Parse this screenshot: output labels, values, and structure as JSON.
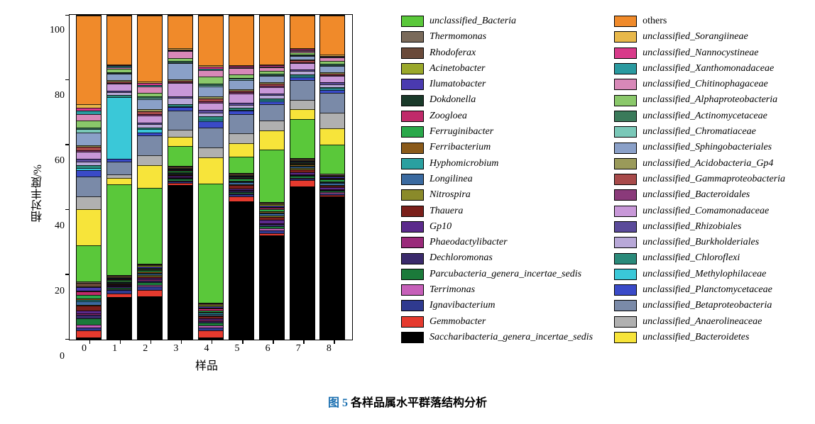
{
  "caption": {
    "label": "图 5",
    "text": " 各样品属水平群落结构分析"
  },
  "axes": {
    "ylabel": "相对丰度/%",
    "xlabel": "样品",
    "ylim": [
      0,
      100
    ],
    "yticks": [
      0,
      20,
      40,
      60,
      80,
      100
    ],
    "categories": [
      "0",
      "1",
      "2",
      "3",
      "4",
      "5",
      "6",
      "7",
      "8"
    ],
    "label_fontsize": 16,
    "tick_fontsize": 14,
    "border_color": "#000000",
    "background": "#ffffff"
  },
  "taxa": [
    {
      "key": "saccharibacteria",
      "label": "Saccharibacteria_genera_incertae_sedis",
      "color": "#000000"
    },
    {
      "key": "gemmobacter",
      "label": "Gemmobacter",
      "color": "#e53a2e"
    },
    {
      "key": "ignavibacterium",
      "label": "Ignavibacterium",
      "color": "#2f3a8f"
    },
    {
      "key": "terrimonas",
      "label": "Terrimonas",
      "color": "#c65fb9"
    },
    {
      "key": "parcubacteria",
      "label": "Parcubacteria_genera_incertae_sedis",
      "color": "#1b7a3a"
    },
    {
      "key": "dechloromonas",
      "label": "Dechloromonas",
      "color": "#3a2a6b"
    },
    {
      "key": "phaeodactylibacter",
      "label": "Phaeodactylibacter",
      "color": "#9a2a7a"
    },
    {
      "key": "gp10",
      "label": "Gp10",
      "color": "#5b2a8c"
    },
    {
      "key": "thauera",
      "label": "Thauera",
      "color": "#7a1f1a"
    },
    {
      "key": "nitrospira",
      "label": "Nitrospira",
      "color": "#8a8a2a"
    },
    {
      "key": "longilinea",
      "label": "Longilinea",
      "color": "#3a6aa0"
    },
    {
      "key": "hyphomicrobium",
      "label": "Hyphomicrobium",
      "color": "#2aa0a0"
    },
    {
      "key": "ferribacterium",
      "label": "Ferribacterium",
      "color": "#8a5a1a"
    },
    {
      "key": "ferruginibacter",
      "label": "Ferruginibacter",
      "color": "#2aa84a"
    },
    {
      "key": "zoogloea",
      "label": "Zoogloea",
      "color": "#c02a6a"
    },
    {
      "key": "dokdonella",
      "label": "Dokdonella",
      "color": "#1a3a2a"
    },
    {
      "key": "ilumatobacter",
      "label": "Ilumatobacter",
      "color": "#4a3ab0"
    },
    {
      "key": "acinetobacter",
      "label": "Acinetobacter",
      "color": "#9aa82a"
    },
    {
      "key": "rhodoferax",
      "label": "Rhodoferax",
      "color": "#6a4a3a"
    },
    {
      "key": "thermomonas",
      "label": "Thermomonas",
      "color": "#7a6a5a"
    },
    {
      "key": "unclassified_bacteria",
      "label": "unclassified_Bacteria",
      "color": "#5ac83a"
    },
    {
      "key": "u_bacteroidetes",
      "label": "unclassified_Bacteroidetes",
      "color": "#f7e43a"
    },
    {
      "key": "u_anaerolineaceae",
      "label": "unclassified_Anaerolineaceae",
      "color": "#b0b0b0"
    },
    {
      "key": "u_betaproteobacteria",
      "label": "unclassified_Betaproteobacteria",
      "color": "#7a8aa8"
    },
    {
      "key": "u_planctomycetaceae",
      "label": "unclassified_Planctomycetaceae",
      "color": "#3a4ac8"
    },
    {
      "key": "u_methylophilaceae",
      "label": "unclassified_Methylophilaceae",
      "color": "#3ac8d8"
    },
    {
      "key": "u_chloroflexi",
      "label": "unclassified_Chloroflexi",
      "color": "#2a8a7a"
    },
    {
      "key": "u_burkholderiales",
      "label": "unclassified_Burkholderiales",
      "color": "#b8a8d8"
    },
    {
      "key": "u_rhizobiales",
      "label": "unclassified_Rhizobiales",
      "color": "#5a4a9a"
    },
    {
      "key": "u_comamonadaceae",
      "label": "unclassified_Comamonadaceae",
      "color": "#c898d8"
    },
    {
      "key": "u_bacteroidales",
      "label": "unclassified_Bacteroidales",
      "color": "#8a3a7a"
    },
    {
      "key": "u_gammaproteobacteria",
      "label": "unclassified_Gammaproteobacteria",
      "color": "#a84a4a"
    },
    {
      "key": "u_acidobacteria_gp4",
      "label": "unclassified_Acidobacteria_Gp4",
      "color": "#9a9a5a"
    },
    {
      "key": "u_sphingobacteriales",
      "label": "unclassified_Sphingobacteriales",
      "color": "#8aa0c8"
    },
    {
      "key": "u_chromatiaceae",
      "label": "unclassified_Chromatiaceae",
      "color": "#7ac8b8"
    },
    {
      "key": "u_actinomycetaceae",
      "label": "unclassified_Actinomycetaceae",
      "color": "#3a7a5a"
    },
    {
      "key": "u_alphaproteobacteria",
      "label": "unclassified_Alphaproteobacteria",
      "color": "#8ac86a"
    },
    {
      "key": "u_chitinophagaceae",
      "label": "unclassified_Chitinophagaceae",
      "color": "#d888b8"
    },
    {
      "key": "u_xanthomonadaceae",
      "label": "unclassified_Xanthomonadaceae",
      "color": "#2a9aa0"
    },
    {
      "key": "u_nannocystineae",
      "label": "unclassified_Nannocystineae",
      "color": "#d83a8a"
    },
    {
      "key": "u_sorangiineae",
      "label": "unclassified_Sorangiineae",
      "color": "#e8b84a"
    },
    {
      "key": "others",
      "label": "others",
      "color": "#f08a2a"
    }
  ],
  "legend_left_order": [
    "unclassified_bacteria",
    "thermomonas",
    "rhodoferax",
    "acinetobacter",
    "ilumatobacter",
    "dokdonella",
    "zoogloea",
    "ferruginibacter",
    "ferribacterium",
    "hyphomicrobium",
    "longilinea",
    "nitrospira",
    "thauera",
    "gp10",
    "phaeodactylibacter",
    "dechloromonas",
    "parcubacteria",
    "terrimonas",
    "ignavibacterium",
    "gemmobacter",
    "saccharibacteria"
  ],
  "legend_right_order": [
    "others",
    "u_sorangiineae",
    "u_nannocystineae",
    "u_xanthomonadaceae",
    "u_chitinophagaceae",
    "u_alphaproteobacteria",
    "u_actinomycetaceae",
    "u_chromatiaceae",
    "u_sphingobacteriales",
    "u_acidobacteria_gp4",
    "u_gammaproteobacteria",
    "u_bacteroidales",
    "u_comamonadaceae",
    "u_rhizobiales",
    "u_burkholderiales",
    "u_chloroflexi",
    "u_methylophilaceae",
    "u_planctomycetaceae",
    "u_betaproteobacteria",
    "u_anaerolineaceae",
    "u_bacteroidetes"
  ],
  "stack_order": [
    "saccharibacteria",
    "gemmobacter",
    "ignavibacterium",
    "terrimonas",
    "parcubacteria",
    "dechloromonas",
    "phaeodactylibacter",
    "gp10",
    "thauera",
    "nitrospira",
    "longilinea",
    "hyphomicrobium",
    "ferribacterium",
    "ferruginibacter",
    "zoogloea",
    "dokdonella",
    "ilumatobacter",
    "acinetobacter",
    "rhodoferax",
    "thermomonas",
    "unclassified_bacteria",
    "u_bacteroidetes",
    "u_anaerolineaceae",
    "u_betaproteobacteria",
    "u_planctomycetaceae",
    "u_methylophilaceae",
    "u_chloroflexi",
    "u_burkholderiales",
    "u_rhizobiales",
    "u_comamonadaceae",
    "u_bacteroidales",
    "u_gammaproteobacteria",
    "u_acidobacteria_gp4",
    "u_sphingobacteriales",
    "u_chromatiaceae",
    "u_actinomycetaceae",
    "u_alphaproteobacteria",
    "u_chitinophagaceae",
    "u_xanthomonadaceae",
    "u_nannocystineae",
    "u_sorangiineae",
    "others"
  ],
  "series": {
    "0": {
      "saccharibacteria": 0.5,
      "gemmobacter": 2,
      "ignavibacterium": 1,
      "terrimonas": 0.8,
      "parcubacteria": 2,
      "dechloromonas": 1,
      "phaeodactylibacter": 0.5,
      "gp10": 0.8,
      "thauera": 1.5,
      "nitrospira": 0.3,
      "longilinea": 1,
      "hyphomicrobium": 0.5,
      "ferribacterium": 0.5,
      "ferruginibacter": 1,
      "zoogloea": 1,
      "dokdonella": 0.3,
      "ilumatobacter": 1,
      "acinetobacter": 0.3,
      "rhodoferax": 1,
      "thermomonas": 0.5,
      "unclassified_bacteria": 11,
      "u_bacteroidetes": 11,
      "u_anaerolineaceae": 4,
      "u_betaproteobacteria": 6,
      "u_planctomycetaceae": 2,
      "u_methylophilaceae": 0.5,
      "u_chloroflexi": 1,
      "u_burkholderiales": 1,
      "u_rhizobiales": 1,
      "u_comamonadaceae": 2,
      "u_bacteroidales": 0.5,
      "u_gammaproteobacteria": 1,
      "u_acidobacteria_gp4": 0.5,
      "u_sphingobacteriales": 4,
      "u_chromatiaceae": 1,
      "u_actinomycetaceae": 0.5,
      "u_alphaproteobacteria": 2,
      "u_chitinophagaceae": 2,
      "u_xanthomonadaceae": 1,
      "u_nannocystineae": 1,
      "u_sorangiineae": 1,
      "others": 27
    },
    "1": {
      "saccharibacteria": 13,
      "gemmobacter": 1,
      "ignavibacterium": 1,
      "terrimonas": 0.3,
      "parcubacteria": 0.5,
      "dechloromonas": 0.3,
      "phaeodactylibacter": 0.2,
      "gp10": 0.2,
      "thauera": 0.3,
      "nitrospira": 0.2,
      "longilinea": 0.3,
      "hyphomicrobium": 0.2,
      "ferribacterium": 0.2,
      "ferruginibacter": 0.3,
      "zoogloea": 0.3,
      "dokdonella": 0.2,
      "ilumatobacter": 0.3,
      "acinetobacter": 0.2,
      "rhodoferax": 0.3,
      "thermomonas": 0.2,
      "unclassified_bacteria": 28,
      "u_bacteroidetes": 2,
      "u_anaerolineaceae": 1,
      "u_betaproteobacteria": 4,
      "u_planctomycetaceae": 1,
      "u_methylophilaceae": 19,
      "u_chloroflexi": 0.5,
      "u_burkholderiales": 1,
      "u_rhizobiales": 0.5,
      "u_comamonadaceae": 2,
      "u_bacteroidales": 0.3,
      "u_gammaproteobacteria": 0.5,
      "u_acidobacteria_gp4": 0.3,
      "u_sphingobacteriales": 2,
      "u_chromatiaceae": 0.3,
      "u_actinomycetaceae": 0.3,
      "u_alphaproteobacteria": 1,
      "u_chitinophagaceae": 0.5,
      "u_xanthomonadaceae": 0.3,
      "u_nannocystineae": 0.3,
      "u_sorangiineae": 0.3,
      "others": 15
    },
    "2": {
      "saccharibacteria": 13,
      "gemmobacter": 2,
      "ignavibacterium": 1,
      "terrimonas": 0.5,
      "parcubacteria": 0.8,
      "dechloromonas": 0.5,
      "phaeodactylibacter": 0.3,
      "gp10": 0.5,
      "thauera": 0.5,
      "nitrospira": 0.3,
      "longilinea": 0.5,
      "hyphomicrobium": 0.3,
      "ferribacterium": 0.3,
      "ferruginibacter": 0.5,
      "zoogloea": 0.3,
      "dokdonella": 0.3,
      "ilumatobacter": 0.5,
      "acinetobacter": 0.3,
      "rhodoferax": 0.3,
      "thermomonas": 0.3,
      "unclassified_bacteria": 23,
      "u_bacteroidetes": 7,
      "u_anaerolineaceae": 3,
      "u_betaproteobacteria": 6,
      "u_planctomycetaceae": 1,
      "u_methylophilaceae": 1,
      "u_chloroflexi": 0.5,
      "u_burkholderiales": 1,
      "u_rhizobiales": 0.5,
      "u_comamonadaceae": 2,
      "u_bacteroidales": 0.5,
      "u_gammaproteobacteria": 1,
      "u_acidobacteria_gp4": 0.5,
      "u_sphingobacteriales": 3,
      "u_chromatiaceae": 0.5,
      "u_actinomycetaceae": 0.5,
      "u_alphaproteobacteria": 1,
      "u_chitinophagaceae": 2,
      "u_xanthomonadaceae": 0.5,
      "u_nannocystineae": 0.5,
      "u_sorangiineae": 0.5,
      "others": 20
    },
    "3": {
      "saccharibacteria": 47,
      "gemmobacter": 0.5,
      "ignavibacterium": 0.5,
      "terrimonas": 0.3,
      "parcubacteria": 0.5,
      "dechloromonas": 0.3,
      "phaeodactylibacter": 0.2,
      "gp10": 0.3,
      "thauera": 0.3,
      "nitrospira": 0.2,
      "longilinea": 0.3,
      "hyphomicrobium": 0.2,
      "ferribacterium": 0.2,
      "ferruginibacter": 0.3,
      "zoogloea": 0.3,
      "dokdonella": 0.2,
      "ilumatobacter": 0.3,
      "acinetobacter": 0.2,
      "rhodoferax": 0.3,
      "thermomonas": 0.2,
      "unclassified_bacteria": 6,
      "u_bacteroidetes": 3,
      "u_anaerolineaceae": 2,
      "u_betaproteobacteria": 6,
      "u_planctomycetaceae": 1,
      "u_methylophilaceae": 0.3,
      "u_chloroflexi": 0.5,
      "u_burkholderiales": 2,
      "u_rhizobiales": 0.5,
      "u_comamonadaceae": 4,
      "u_bacteroidales": 0.3,
      "u_gammaproteobacteria": 0.5,
      "u_acidobacteria_gp4": 0.3,
      "u_sphingobacteriales": 5,
      "u_chromatiaceae": 0.3,
      "u_actinomycetaceae": 0.3,
      "u_alphaproteobacteria": 1,
      "u_chitinophagaceae": 2,
      "u_xanthomonadaceae": 0.3,
      "u_nannocystineae": 0.3,
      "u_sorangiineae": 0.3,
      "others": 10
    },
    "4": {
      "saccharibacteria": 0.5,
      "gemmobacter": 2,
      "ignavibacterium": 1,
      "terrimonas": 0.5,
      "parcubacteria": 1,
      "dechloromonas": 0.5,
      "phaeodactylibacter": 0.3,
      "gp10": 0.5,
      "thauera": 0.5,
      "nitrospira": 0.3,
      "longilinea": 0.5,
      "hyphomicrobium": 0.3,
      "ferribacterium": 0.3,
      "ferruginibacter": 0.5,
      "zoogloea": 0.5,
      "dokdonella": 0.3,
      "ilumatobacter": 0.5,
      "acinetobacter": 0.3,
      "rhodoferax": 0.5,
      "thermomonas": 0.3,
      "unclassified_bacteria": 36,
      "u_bacteroidetes": 8,
      "u_anaerolineaceae": 3,
      "u_betaproteobacteria": 6,
      "u_planctomycetaceae": 2,
      "u_methylophilaceae": 0.5,
      "u_chloroflexi": 1,
      "u_burkholderiales": 1,
      "u_rhizobiales": 1,
      "u_comamonadaceae": 2,
      "u_bacteroidales": 0.5,
      "u_gammaproteobacteria": 1,
      "u_acidobacteria_gp4": 0.5,
      "u_sphingobacteriales": 3,
      "u_chromatiaceae": 0.5,
      "u_actinomycetaceae": 0.5,
      "u_alphaproteobacteria": 2,
      "u_chitinophagaceae": 2,
      "u_xanthomonadaceae": 0.5,
      "u_nannocystineae": 0.5,
      "u_sorangiineae": 0.5,
      "others": 15
    },
    "5": {
      "saccharibacteria": 42,
      "gemmobacter": 1.5,
      "ignavibacterium": 0.5,
      "terrimonas": 0.3,
      "parcubacteria": 0.5,
      "dechloromonas": 0.3,
      "phaeodactylibacter": 0.3,
      "gp10": 0.5,
      "thauera": 1,
      "nitrospira": 0.3,
      "longilinea": 0.5,
      "hyphomicrobium": 0.3,
      "ferribacterium": 0.3,
      "ferruginibacter": 0.5,
      "zoogloea": 0.3,
      "dokdonella": 0.3,
      "ilumatobacter": 0.3,
      "acinetobacter": 0.3,
      "rhodoferax": 0.3,
      "thermomonas": 0.3,
      "unclassified_bacteria": 5,
      "u_bacteroidetes": 4,
      "u_anaerolineaceae": 3,
      "u_betaproteobacteria": 6,
      "u_planctomycetaceae": 1,
      "u_methylophilaceae": 0.3,
      "u_chloroflexi": 0.5,
      "u_burkholderiales": 1,
      "u_rhizobiales": 0.5,
      "u_comamonadaceae": 3,
      "u_bacteroidales": 0.3,
      "u_gammaproteobacteria": 0.5,
      "u_acidobacteria_gp4": 0.3,
      "u_sphingobacteriales": 3,
      "u_chromatiaceae": 0.3,
      "u_actinomycetaceae": 0.3,
      "u_alphaproteobacteria": 1,
      "u_chitinophagaceae": 2,
      "u_xanthomonadaceae": 0.3,
      "u_nannocystineae": 0.3,
      "u_sorangiineae": 0.3,
      "others": 15
    },
    "6": {
      "saccharibacteria": 32,
      "gemmobacter": 0.5,
      "ignavibacterium": 1,
      "terrimonas": 0.5,
      "parcubacteria": 0.8,
      "dechloromonas": 0.5,
      "phaeodactylibacter": 0.3,
      "gp10": 1,
      "thauera": 1,
      "nitrospira": 0.5,
      "longilinea": 0.5,
      "hyphomicrobium": 0.3,
      "ferribacterium": 0.5,
      "ferruginibacter": 0.5,
      "zoogloea": 0.5,
      "dokdonella": 0.3,
      "ilumatobacter": 0.5,
      "acinetobacter": 0.3,
      "rhodoferax": 0.5,
      "thermomonas": 0.3,
      "unclassified_bacteria": 16,
      "u_bacteroidetes": 6,
      "u_anaerolineaceae": 3,
      "u_betaproteobacteria": 5,
      "u_planctomycetaceae": 1,
      "u_methylophilaceae": 0.3,
      "u_chloroflexi": 0.5,
      "u_burkholderiales": 1,
      "u_rhizobiales": 0.5,
      "u_comamonadaceae": 2,
      "u_bacteroidales": 0.5,
      "u_gammaproteobacteria": 0.5,
      "u_acidobacteria_gp4": 0.5,
      "u_sphingobacteriales": 2,
      "u_chromatiaceae": 0.3,
      "u_actinomycetaceae": 0.3,
      "u_alphaproteobacteria": 1,
      "u_chitinophagaceae": 1,
      "u_xanthomonadaceae": 0.3,
      "u_nannocystineae": 0.3,
      "u_sorangiineae": 0.3,
      "others": 15
    },
    "7": {
      "saccharibacteria": 47,
      "gemmobacter": 2,
      "ignavibacterium": 0.5,
      "terrimonas": 0.3,
      "parcubacteria": 0.5,
      "dechloromonas": 0.3,
      "phaeodactylibacter": 0.3,
      "gp10": 0.5,
      "thauera": 1,
      "nitrospira": 0.3,
      "longilinea": 0.5,
      "hyphomicrobium": 0.3,
      "ferribacterium": 0.3,
      "ferruginibacter": 0.3,
      "zoogloea": 0.3,
      "dokdonella": 0.3,
      "ilumatobacter": 0.3,
      "acinetobacter": 0.3,
      "rhodoferax": 0.3,
      "thermomonas": 0.3,
      "unclassified_bacteria": 12,
      "u_bacteroidetes": 3,
      "u_anaerolineaceae": 3,
      "u_betaproteobacteria": 6,
      "u_planctomycetaceae": 1,
      "u_methylophilaceae": 0.3,
      "u_chloroflexi": 0.5,
      "u_burkholderiales": 1,
      "u_rhizobiales": 0.5,
      "u_comamonadaceae": 2,
      "u_bacteroidales": 0.3,
      "u_gammaproteobacteria": 0.5,
      "u_acidobacteria_gp4": 0.3,
      "u_sphingobacteriales": 1,
      "u_chromatiaceae": 0.3,
      "u_actinomycetaceae": 0.3,
      "u_alphaproteobacteria": 0.5,
      "u_chitinophagaceae": 0.5,
      "u_xanthomonadaceae": 0.3,
      "u_nannocystineae": 0.3,
      "u_sorangiineae": 0.3,
      "others": 10
    },
    "8": {
      "saccharibacteria": 44,
      "gemmobacter": 0.5,
      "ignavibacterium": 0.5,
      "terrimonas": 0.3,
      "parcubacteria": 0.5,
      "dechloromonas": 0.3,
      "phaeodactylibacter": 0.3,
      "gp10": 0.5,
      "thauera": 0.5,
      "nitrospira": 0.3,
      "longilinea": 0.5,
      "hyphomicrobium": 0.3,
      "ferribacterium": 0.3,
      "ferruginibacter": 0.5,
      "zoogloea": 0.3,
      "dokdonella": 0.3,
      "ilumatobacter": 0.3,
      "acinetobacter": 0.3,
      "rhodoferax": 0.3,
      "thermomonas": 0.3,
      "unclassified_bacteria": 9,
      "u_bacteroidetes": 5,
      "u_anaerolineaceae": 5,
      "u_betaproteobacteria": 6,
      "u_planctomycetaceae": 1,
      "u_methylophilaceae": 0.3,
      "u_chloroflexi": 0.5,
      "u_burkholderiales": 1,
      "u_rhizobiales": 0.5,
      "u_comamonadaceae": 2,
      "u_bacteroidales": 0.3,
      "u_gammaproteobacteria": 0.5,
      "u_acidobacteria_gp4": 0.3,
      "u_sphingobacteriales": 2,
      "u_chromatiaceae": 0.3,
      "u_actinomycetaceae": 0.3,
      "u_alphaproteobacteria": 1,
      "u_chitinophagaceae": 1,
      "u_xanthomonadaceae": 0.3,
      "u_nannocystineae": 0.3,
      "u_sorangiineae": 0.3,
      "others": 12
    }
  }
}
